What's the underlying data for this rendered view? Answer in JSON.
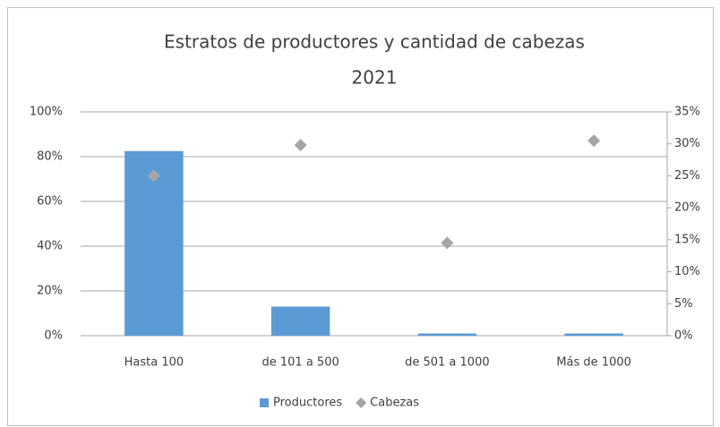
{
  "chart_data": {
    "type": "bar",
    "title": "Estratos de productores y cantidad de cabezas",
    "subtitle": "2021",
    "categories": [
      "Hasta 100",
      "de 101 a 500",
      "de 501 a 1000",
      "Más de 1000"
    ],
    "series": [
      {
        "name": "Productores",
        "type": "bar",
        "color": "#5b9bd5",
        "values": [
          82.5,
          13,
          1,
          1
        ]
      },
      {
        "name": "Cabezas",
        "type": "scatter",
        "axis": "y2",
        "color": "#a5a5a5",
        "values": [
          25,
          29.8,
          14.5,
          30.5
        ]
      }
    ],
    "ylim": [
      0,
      100
    ],
    "yticks": [
      {
        "value": 0,
        "label": "0%"
      },
      {
        "value": 20,
        "label": "20%"
      },
      {
        "value": 40,
        "label": "40%"
      },
      {
        "value": 60,
        "label": "60%"
      },
      {
        "value": 80,
        "label": "80%"
      },
      {
        "value": 100,
        "label": "100%"
      }
    ],
    "y2lim": [
      0,
      35
    ],
    "y2ticks": [
      {
        "value": 0,
        "label": "0%"
      },
      {
        "value": 5,
        "label": "5%"
      },
      {
        "value": 10,
        "label": "10%"
      },
      {
        "value": 15,
        "label": "15%"
      },
      {
        "value": 20,
        "label": "20%"
      },
      {
        "value": 25,
        "label": "25%"
      },
      {
        "value": 30,
        "label": "30%"
      },
      {
        "value": 35,
        "label": "35%"
      }
    ],
    "grid": true,
    "legend": "bottom"
  }
}
